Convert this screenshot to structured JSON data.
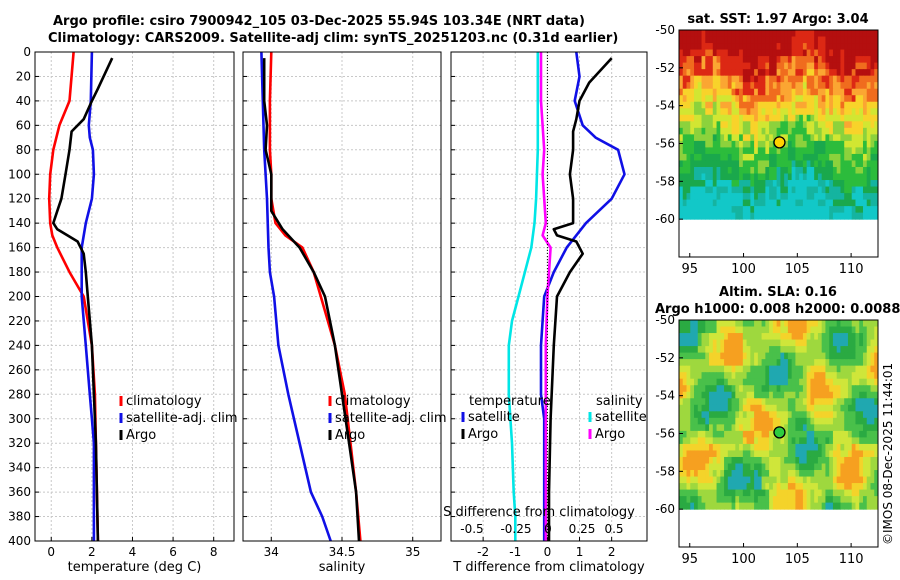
{
  "title": {
    "line1": "Argo profile: csiro 7900942_105 03-Dec-2025 55.94S 103.34E (NRT data)",
    "line2": "Climatology: CARS2009. Satellite-adj clim: synTS_20251203.nc (0.31d earlier)"
  },
  "watermark": "©IMOS 08-Dec-2025 11:44:01",
  "colors": {
    "climatology": "#ff0000",
    "satellite": "#1010e6",
    "argo": "#000000",
    "salinity_satellite": "#00e6e6",
    "salinity_diff": "#ff00ff",
    "grid": "#c8c8c8"
  },
  "chart_data": [
    {
      "type": "line",
      "name": "temperature-panel",
      "xlabel": "temperature (deg C)",
      "ylabel": "",
      "xlim": [
        -0.8,
        9
      ],
      "ylim": [
        0,
        400
      ],
      "xticks": [
        "0",
        "2",
        "4",
        "6",
        "8"
      ],
      "yticks": [
        "0",
        "20",
        "40",
        "60",
        "80",
        "100",
        "120",
        "140",
        "160",
        "180",
        "200",
        "220",
        "240",
        "260",
        "280",
        "300",
        "320",
        "340",
        "360",
        "380",
        "400"
      ],
      "grid": true,
      "series": [
        {
          "name": "climatology",
          "color": "#ff0000",
          "x": [
            1.1,
            0.9,
            0.4,
            0.1,
            -0.05,
            -0.1,
            -0.05,
            0.05,
            0.3,
            0.9,
            1.6,
            2.0,
            2.15,
            2.2,
            2.25,
            2.3
          ],
          "y": [
            0,
            40,
            60,
            80,
            100,
            120,
            140,
            150,
            160,
            180,
            200,
            240,
            280,
            320,
            360,
            400
          ]
        },
        {
          "name": "satellite-adj. clim",
          "color": "#1010e6",
          "x": [
            2.0,
            1.95,
            1.85,
            1.9,
            2.05,
            2.1,
            2.0,
            1.7,
            1.5,
            1.5,
            1.5,
            1.7,
            1.9,
            2.0,
            2.1,
            2.1,
            2.1
          ],
          "y": [
            0,
            40,
            60,
            70,
            80,
            100,
            120,
            140,
            160,
            180,
            200,
            240,
            280,
            300,
            320,
            360,
            400
          ]
        },
        {
          "name": "Argo",
          "color": "#000000",
          "x": [
            3.0,
            2.3,
            2.0,
            1.6,
            1.0,
            0.9,
            0.7,
            0.5,
            0.3,
            0.1,
            0.3,
            0.8,
            1.3,
            1.6,
            1.7,
            1.8,
            2.0,
            2.1,
            2.2,
            2.25,
            2.3
          ],
          "y": [
            5,
            30,
            40,
            55,
            65,
            80,
            100,
            120,
            130,
            140,
            145,
            150,
            155,
            165,
            180,
            200,
            240,
            280,
            320,
            360,
            400
          ]
        }
      ],
      "legend": [
        {
          "label": "climatology",
          "color": "#ff0000"
        },
        {
          "label": "satellite-adj. clim",
          "color": "#1010e6"
        },
        {
          "label": "Argo",
          "color": "#000000"
        }
      ]
    },
    {
      "type": "line",
      "name": "salinity-panel",
      "xlabel": "salinity",
      "xlim": [
        33.8,
        35.2
      ],
      "ylim": [
        0,
        400
      ],
      "xticks": [
        "34",
        "34.5",
        "35"
      ],
      "grid": true,
      "series": [
        {
          "name": "climatology",
          "color": "#ff0000",
          "x": [
            34.0,
            33.99,
            33.99,
            34.0,
            34.0,
            34.03,
            34.1,
            34.22,
            34.3,
            34.35,
            34.45,
            34.52,
            34.56,
            34.6,
            34.63
          ],
          "y": [
            0,
            40,
            80,
            100,
            120,
            140,
            150,
            160,
            180,
            200,
            240,
            280,
            320,
            360,
            400
          ]
        },
        {
          "name": "satellite-adj. clim",
          "color": "#1010e6",
          "x": [
            33.93,
            33.94,
            33.95,
            33.97,
            33.98,
            33.99,
            34.02,
            34.05,
            34.12,
            34.2,
            34.28,
            34.36,
            34.42
          ],
          "y": [
            0,
            40,
            80,
            120,
            160,
            180,
            200,
            240,
            280,
            320,
            360,
            380,
            400
          ]
        },
        {
          "name": "Argo",
          "color": "#000000",
          "x": [
            33.95,
            33.95,
            33.97,
            33.96,
            33.98,
            34.0,
            34.0,
            34.08,
            34.2,
            34.3,
            34.38,
            34.45,
            34.5,
            34.55,
            34.6,
            34.62
          ],
          "y": [
            5,
            40,
            60,
            80,
            90,
            100,
            130,
            145,
            160,
            180,
            200,
            240,
            280,
            320,
            360,
            400
          ]
        }
      ],
      "legend": [
        {
          "label": "climatology",
          "color": "#ff0000"
        },
        {
          "label": "satellite-adj. clim",
          "color": "#1010e6"
        },
        {
          "label": "Argo",
          "color": "#000000"
        }
      ]
    },
    {
      "type": "line",
      "name": "difference-panel",
      "xlabel": "T difference from climatology",
      "secondary_xlabel": "S difference from climatology",
      "xlim": [
        -3,
        3.1
      ],
      "ylim": [
        0,
        400
      ],
      "xticks": [
        "-2",
        "-1",
        "0",
        "1",
        "2"
      ],
      "secondary_xticks": [
        "-0.5",
        "-0.25",
        "0",
        "0.25",
        "0.5"
      ],
      "grid": true,
      "series": [
        {
          "name": "satellite (temperature)",
          "color": "#1010e6",
          "x": [
            0.9,
            1.0,
            0.85,
            1.1,
            1.5,
            2.2,
            2.4,
            2.0,
            1.2,
            0.6,
            0.2,
            -0.1,
            -0.2,
            -0.2,
            -0.1,
            -0.1,
            -0.1,
            -0.1
          ],
          "y": [
            0,
            20,
            40,
            60,
            70,
            80,
            100,
            120,
            140,
            160,
            180,
            200,
            240,
            280,
            300,
            320,
            360,
            400
          ]
        },
        {
          "name": "Argo (temperature)",
          "color": "#000000",
          "x": [
            2.0,
            1.3,
            1.0,
            0.9,
            0.8,
            0.8,
            0.7,
            0.8,
            0.8,
            0.2,
            0.3,
            0.9,
            1.1,
            0.7,
            0.3,
            0.2,
            0.1,
            0.05,
            0.05
          ],
          "y": [
            5,
            25,
            40,
            55,
            65,
            80,
            100,
            120,
            140,
            145,
            150,
            155,
            165,
            180,
            200,
            240,
            300,
            360,
            400
          ]
        },
        {
          "name": "satellite (salinity)",
          "color": "#00e6e6",
          "x": [
            -0.3,
            -0.3,
            -0.3,
            -0.35,
            -0.4,
            -0.5,
            -0.7,
            -0.9,
            -1.1,
            -1.2,
            -1.2,
            -1.1,
            -1.05,
            -1.0,
            -1.0
          ],
          "y": [
            0,
            40,
            80,
            120,
            140,
            160,
            180,
            200,
            220,
            240,
            280,
            320,
            360,
            380,
            400
          ]
        },
        {
          "name": "Argo (salinity)",
          "color": "#ff00ff",
          "x": [
            -0.2,
            -0.2,
            -0.1,
            -0.15,
            -0.1,
            -0.05,
            -0.15,
            0.1,
            0.0,
            -0.05,
            -0.05,
            -0.05,
            -0.05
          ],
          "y": [
            0,
            40,
            80,
            100,
            120,
            140,
            150,
            160,
            200,
            240,
            280,
            320,
            400
          ]
        }
      ],
      "legend_temperature": {
        "heading": "temperature",
        "items": [
          {
            "label": "satellite",
            "color": "#1010e6"
          },
          {
            "label": "Argo",
            "color": "#000000"
          }
        ]
      },
      "legend_salinity": {
        "heading": "salinity",
        "items": [
          {
            "label": "satellite",
            "color": "#00e6e6"
          },
          {
            "label": "Argo",
            "color": "#ff00ff"
          }
        ]
      }
    },
    {
      "type": "heatmap",
      "name": "sst-map",
      "title": "sat. SST: 1.97 Argo: 3.04",
      "xlim": [
        94,
        112.5
      ],
      "ylim": [
        -62,
        -50
      ],
      "xticks": [
        "95",
        "100",
        "105",
        "110"
      ],
      "yticks": [
        "-50",
        "-52",
        "-54",
        "-56",
        "-58",
        "-60"
      ],
      "data_extent_lat": [
        -60,
        -50
      ],
      "marker": {
        "lon": 103.34,
        "lat": -55.94,
        "color": "#ffd200"
      }
    },
    {
      "type": "heatmap",
      "name": "sla-map",
      "title": "Altim. SLA: 0.16",
      "subtitle": "Argo h1000: 0.008 h2000: 0.0088",
      "xlim": [
        94,
        112.5
      ],
      "ylim": [
        -62,
        -50
      ],
      "xticks": [
        "95",
        "100",
        "105",
        "110"
      ],
      "yticks": [
        "-50",
        "-52",
        "-54",
        "-56",
        "-58",
        "-60"
      ],
      "data_extent_lat": [
        -60,
        -50
      ],
      "marker": {
        "lon": 103.34,
        "lat": -55.94,
        "color": "#2ecc40"
      }
    }
  ]
}
